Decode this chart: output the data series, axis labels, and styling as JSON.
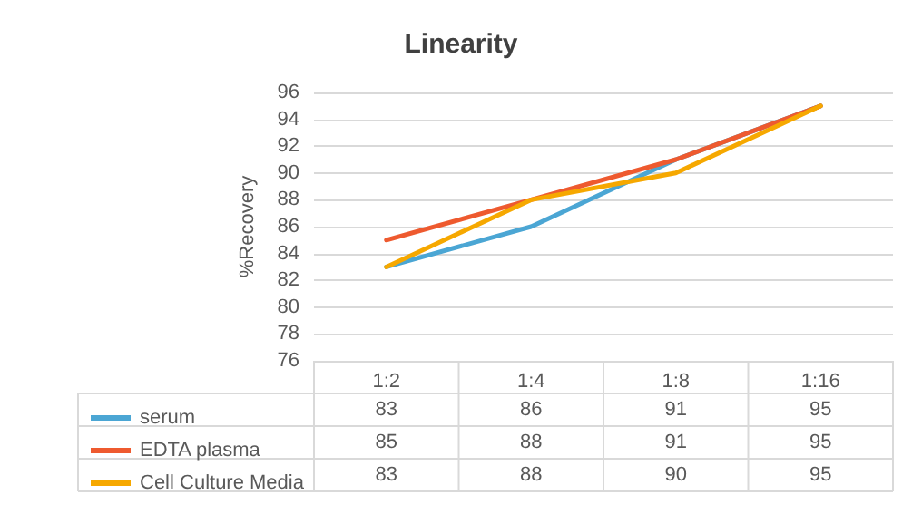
{
  "chart_data": {
    "type": "line",
    "title": "Linearity",
    "ylabel": "%Recovery",
    "categories": [
      "1:2",
      "1:4",
      "1:8",
      "1:16"
    ],
    "series": [
      {
        "name": "serum",
        "color": "#4ba6d4",
        "values": [
          83,
          86,
          91,
          95
        ]
      },
      {
        "name": "EDTA plasma",
        "color": "#ee5a2f",
        "values": [
          85,
          88,
          91,
          95
        ]
      },
      {
        "name": "Cell Culture Media",
        "color": "#f6a800",
        "values": [
          83,
          88,
          90,
          95
        ]
      }
    ],
    "ylim": [
      76,
      96
    ],
    "yticks": [
      76,
      78,
      80,
      82,
      84,
      86,
      88,
      90,
      92,
      94,
      96
    ],
    "grid": "y",
    "legend": "bottom",
    "data_labels": true,
    "marker": "none",
    "line_style": "solid"
  }
}
